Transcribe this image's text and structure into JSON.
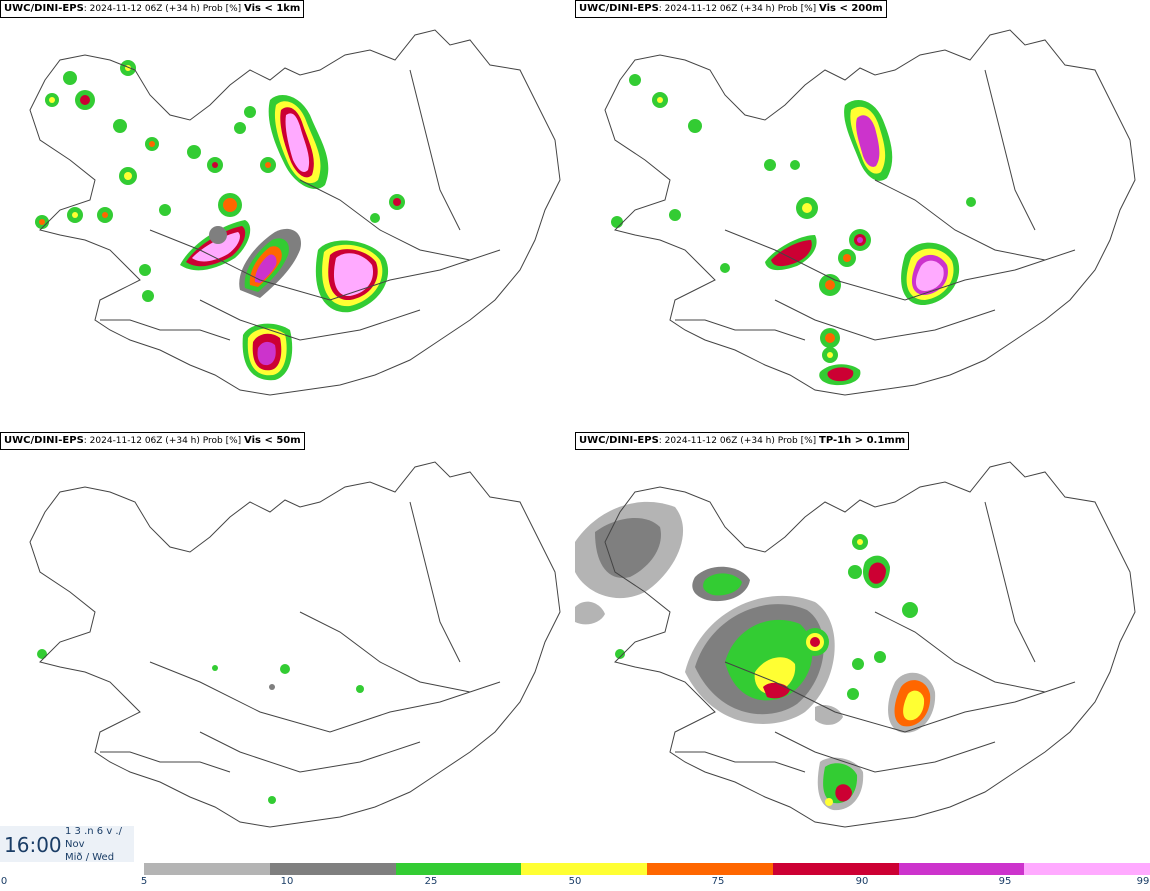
{
  "panels": [
    {
      "model": "UWC/DINI-EPS",
      "run": ": 2024-11-12 06Z (+34 h) Prob [%] ",
      "variable": "Vis < 1km"
    },
    {
      "model": "UWC/DINI-EPS",
      "run": ": 2024-11-12 06Z (+34 h) Prob [%] ",
      "variable": "Vis < 200m"
    },
    {
      "model": "UWC/DINI-EPS",
      "run": ": 2024-11-12 06Z (+34 h) Prob [%] ",
      "variable": "Vis < 50m"
    },
    {
      "model": "UWC/DINI-EPS",
      "run": ": 2024-11-12 06Z (+34 h) Prob [%] ",
      "variable": "TP-1h > 0.1mm"
    }
  ],
  "time": {
    "clock": "16:00",
    "line1": "1 3 .n 6 v ./",
    "line2": "Nov",
    "line3": "Mið / Wed"
  },
  "legend": {
    "colors": [
      "#b4b4b4",
      "#7f7f7f",
      "#33cc33",
      "#ffff33",
      "#ff6600",
      "#cc0033",
      "#cc33cc",
      "#ffaaff"
    ],
    "ticks": [
      "0",
      "5",
      "10",
      "25",
      "50",
      "75",
      "90",
      "95",
      "99"
    ]
  },
  "map_colors": {
    "p5": "#b4b4b4",
    "p10": "#7f7f7f",
    "p25": "#33cc33",
    "p50": "#ffff33",
    "p75": "#ff6600",
    "p90": "#cc0033",
    "p95": "#cc33cc",
    "p99": "#ffaaff"
  }
}
